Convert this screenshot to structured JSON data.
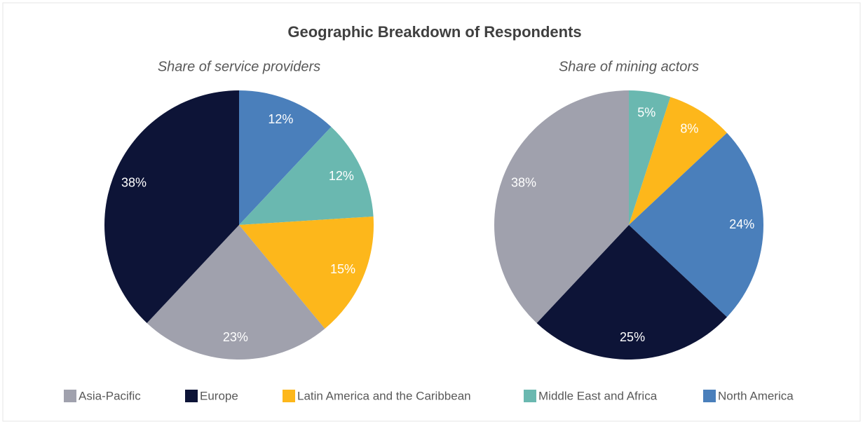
{
  "title": "Geographic Breakdown of Respondents",
  "legend": {
    "names": [
      "Asia-Pacific",
      "Europe",
      "Latin America and the Caribbean",
      "Middle East and Africa",
      "North America"
    ],
    "colors": [
      "#a0a1ad",
      "#0d1437",
      "#fdb71b",
      "#6ab8b0",
      "#4a7fbb"
    ]
  },
  "chart_data": [
    {
      "type": "pie",
      "subtitle": "Share of service providers",
      "categories": [
        "North America",
        "Middle East and Africa",
        "Latin America and the Caribbean",
        "Asia-Pacific",
        "Europe"
      ],
      "values": [
        12,
        12,
        15,
        23,
        38
      ],
      "value_labels": [
        "12%",
        "12%",
        "15%",
        "23%",
        "38%"
      ],
      "colors": [
        "#4a7fbb",
        "#6ab8b0",
        "#fdb71b",
        "#a0a1ad",
        "#0d1437"
      ]
    },
    {
      "type": "pie",
      "subtitle": "Share of mining actors",
      "categories": [
        "Middle East and Africa",
        "Latin America and the Caribbean",
        "North America",
        "Europe",
        "Asia-Pacific"
      ],
      "values": [
        5,
        8,
        24,
        25,
        38
      ],
      "value_labels": [
        "5%",
        "8%",
        "24%",
        "25%",
        "38%"
      ],
      "colors": [
        "#6ab8b0",
        "#fdb71b",
        "#4a7fbb",
        "#0d1437",
        "#a0a1ad"
      ]
    }
  ]
}
